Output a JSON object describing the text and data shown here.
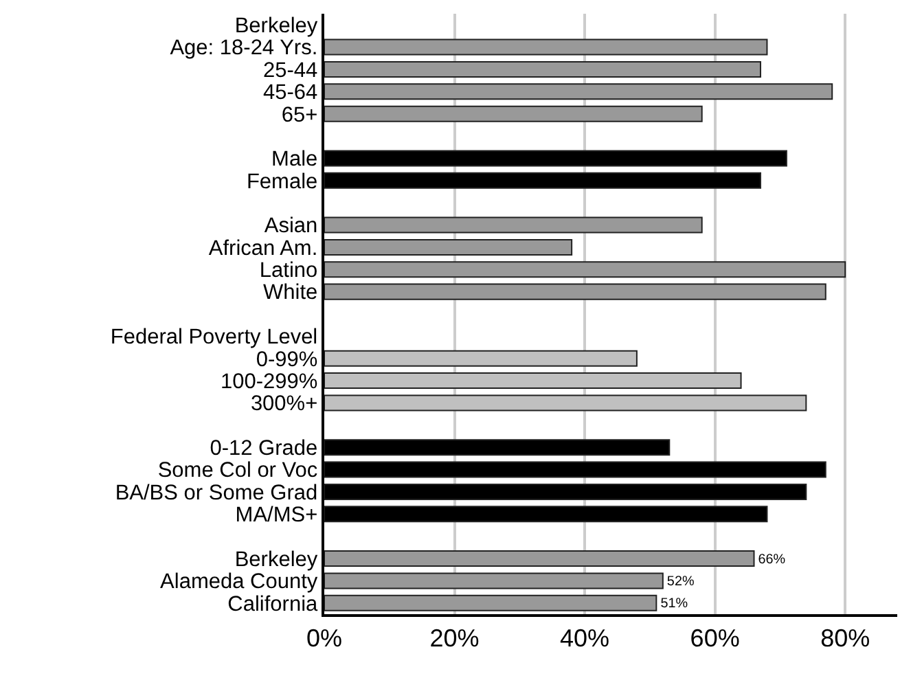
{
  "chart_data": {
    "type": "bar",
    "orientation": "horizontal",
    "categories": [
      "Berkeley",
      "Age: 18-24 Yrs.",
      "25-44",
      "45-64",
      "65+",
      null,
      "Male",
      "Female",
      null,
      "Asian",
      "African Am.",
      "Latino",
      "White",
      null,
      "Federal Poverty Level",
      "0-99%",
      "100-299%",
      "300%+",
      null,
      "0-12 Grade",
      "Some Col or Voc",
      "BA/BS or Some Grad",
      "MA/MS+",
      null,
      "Berkeley",
      "Alameda County",
      "California"
    ],
    "values": [
      null,
      68,
      67,
      78,
      58,
      null,
      71,
      67,
      null,
      58,
      38,
      80,
      77,
      null,
      null,
      48,
      64,
      74,
      null,
      53,
      77,
      74,
      68,
      null,
      66,
      52,
      51
    ],
    "colors": [
      "#999999",
      "#999999",
      "#999999",
      "#999999",
      "#999999",
      "#999999",
      "#000000",
      "#000000",
      "#999999",
      "#999999",
      "#999999",
      "#999999",
      "#999999",
      "#c0c0c0",
      "#c0c0c0",
      "#c0c0c0",
      "#c0c0c0",
      "#c0c0c0",
      "#000000",
      "#000000",
      "#000000",
      "#000000",
      "#000000",
      "#999999",
      "#999999",
      "#999999",
      "#999999"
    ],
    "value_labels": [
      null,
      null,
      null,
      null,
      null,
      null,
      null,
      null,
      null,
      null,
      null,
      null,
      null,
      null,
      null,
      null,
      null,
      null,
      null,
      null,
      null,
      null,
      null,
      null,
      "66%",
      "52%",
      "51%"
    ],
    "xlim": [
      0,
      88
    ],
    "xticks": [
      {
        "value": 0,
        "label": "0%"
      },
      {
        "value": 20,
        "label": "20%"
      },
      {
        "value": 40,
        "label": "40%"
      },
      {
        "value": 60,
        "label": "60%"
      },
      {
        "value": 80,
        "label": "80%"
      }
    ],
    "grid": "x"
  }
}
